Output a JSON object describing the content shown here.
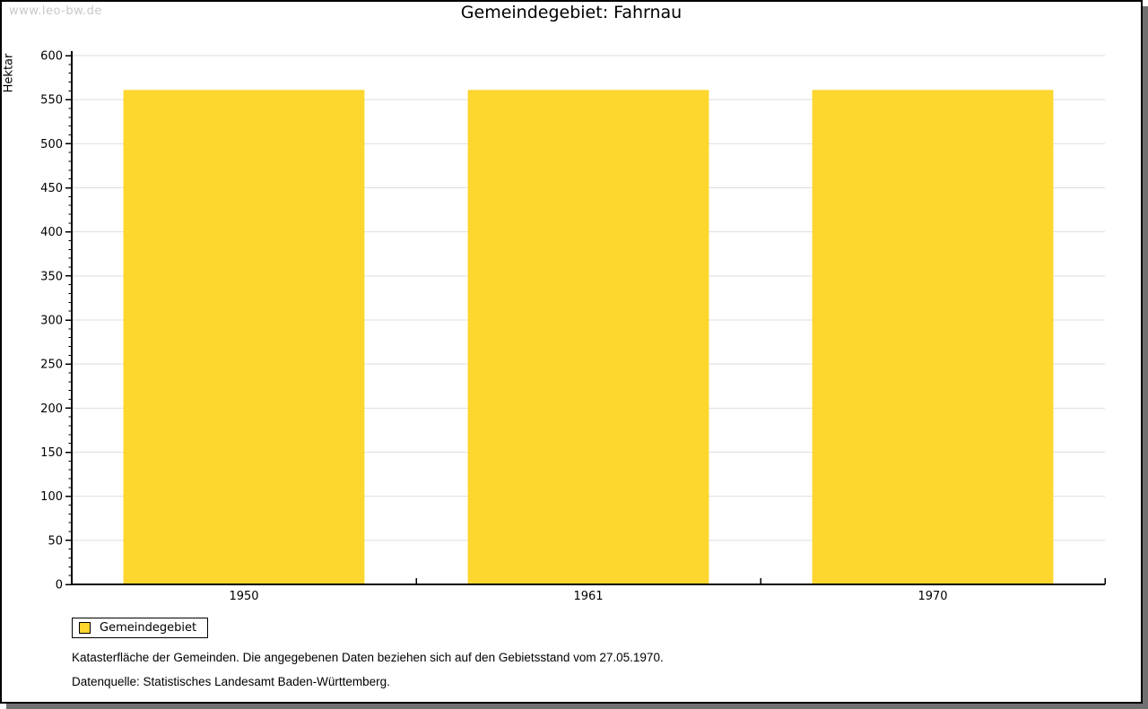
{
  "watermark": "www.leo-bw.de",
  "chart_data": {
    "type": "bar",
    "title": "Gemeindegebiet: Fahrnau",
    "xlabel": "",
    "ylabel": "Hektar",
    "categories": [
      "1950",
      "1961",
      "1970"
    ],
    "series": [
      {
        "name": "Gemeindegebiet",
        "values": [
          561,
          561,
          561
        ]
      }
    ],
    "ylim": [
      0,
      600
    ],
    "y_tick_major": 50,
    "y_tick_minor": 10,
    "y_tick_labels": [
      "0",
      "50",
      "100",
      "150",
      "200",
      "250",
      "300",
      "350",
      "400",
      "450",
      "500",
      "550",
      "600"
    ],
    "grid": "horizontal-major",
    "legend_position": "bottom-left",
    "colors": {
      "bar": "#fdd62e",
      "grid": "#dedede",
      "axis": "#000000",
      "watermark": "#c8c8c8",
      "frame_shadow": "#707070"
    }
  },
  "footnotes": [
    "Katasterfläche der Gemeinden. Die angegebenen Daten beziehen sich auf den Gebietsstand vom 27.05.1970.",
    "Datenquelle: Statistisches Landesamt Baden-Württemberg."
  ]
}
